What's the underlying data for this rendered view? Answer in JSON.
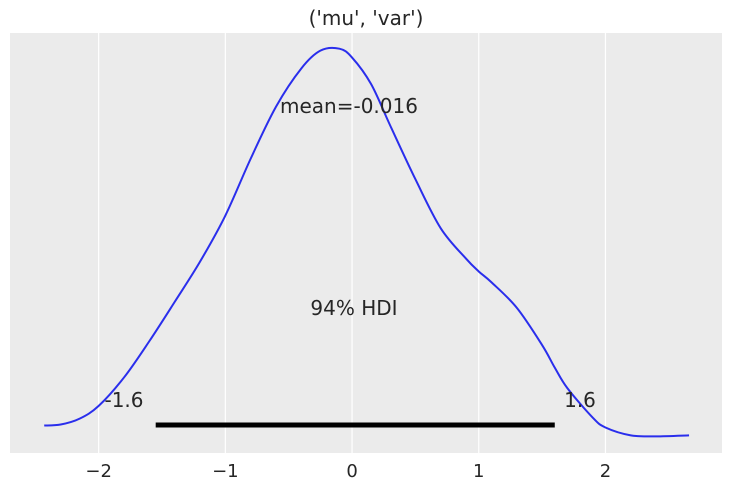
{
  "chart_data": {
    "type": "line",
    "title": "('mu', 'var')",
    "xlabel": "",
    "ylabel": "",
    "xlim": [
      -2.7,
      2.92
    ],
    "ylim": [
      -0.018,
      0.41
    ],
    "grid": "vertical",
    "xticks": [
      -2,
      -1,
      0,
      1,
      2
    ],
    "xtick_labels": [
      "−2",
      "−1",
      "0",
      "1",
      "2"
    ],
    "series": [
      {
        "color": "#2a2eec",
        "x": [
          -2.43,
          -2.3,
          -2.15,
          -2.0,
          -1.8,
          -1.6,
          -1.4,
          -1.2,
          -1.0,
          -0.8,
          -0.6,
          -0.4,
          -0.25,
          -0.1,
          0.0,
          0.15,
          0.3,
          0.5,
          0.7,
          0.9,
          1.0,
          1.1,
          1.3,
          1.5,
          1.6,
          1.7,
          1.9,
          2.0,
          2.2,
          2.4,
          2.66
        ],
        "y": [
          0.01,
          0.011,
          0.017,
          0.03,
          0.059,
          0.096,
          0.136,
          0.177,
          0.224,
          0.282,
          0.335,
          0.374,
          0.392,
          0.394,
          0.385,
          0.358,
          0.316,
          0.261,
          0.211,
          0.18,
          0.167,
          0.156,
          0.13,
          0.092,
          0.069,
          0.048,
          0.018,
          0.008,
          0.0,
          -0.001,
          0.0
        ]
      }
    ],
    "annotations": {
      "mean_label": "mean=-0.016",
      "hdi_label": "94% HDI",
      "hdi_low_label": "-1.6",
      "hdi_high_label": "1.6"
    },
    "hdi": [
      -1.55,
      1.6
    ],
    "colors": {
      "plot_background": "#ebebeb",
      "hdi_bar": "#000000",
      "curve": "#2a2eec"
    }
  }
}
